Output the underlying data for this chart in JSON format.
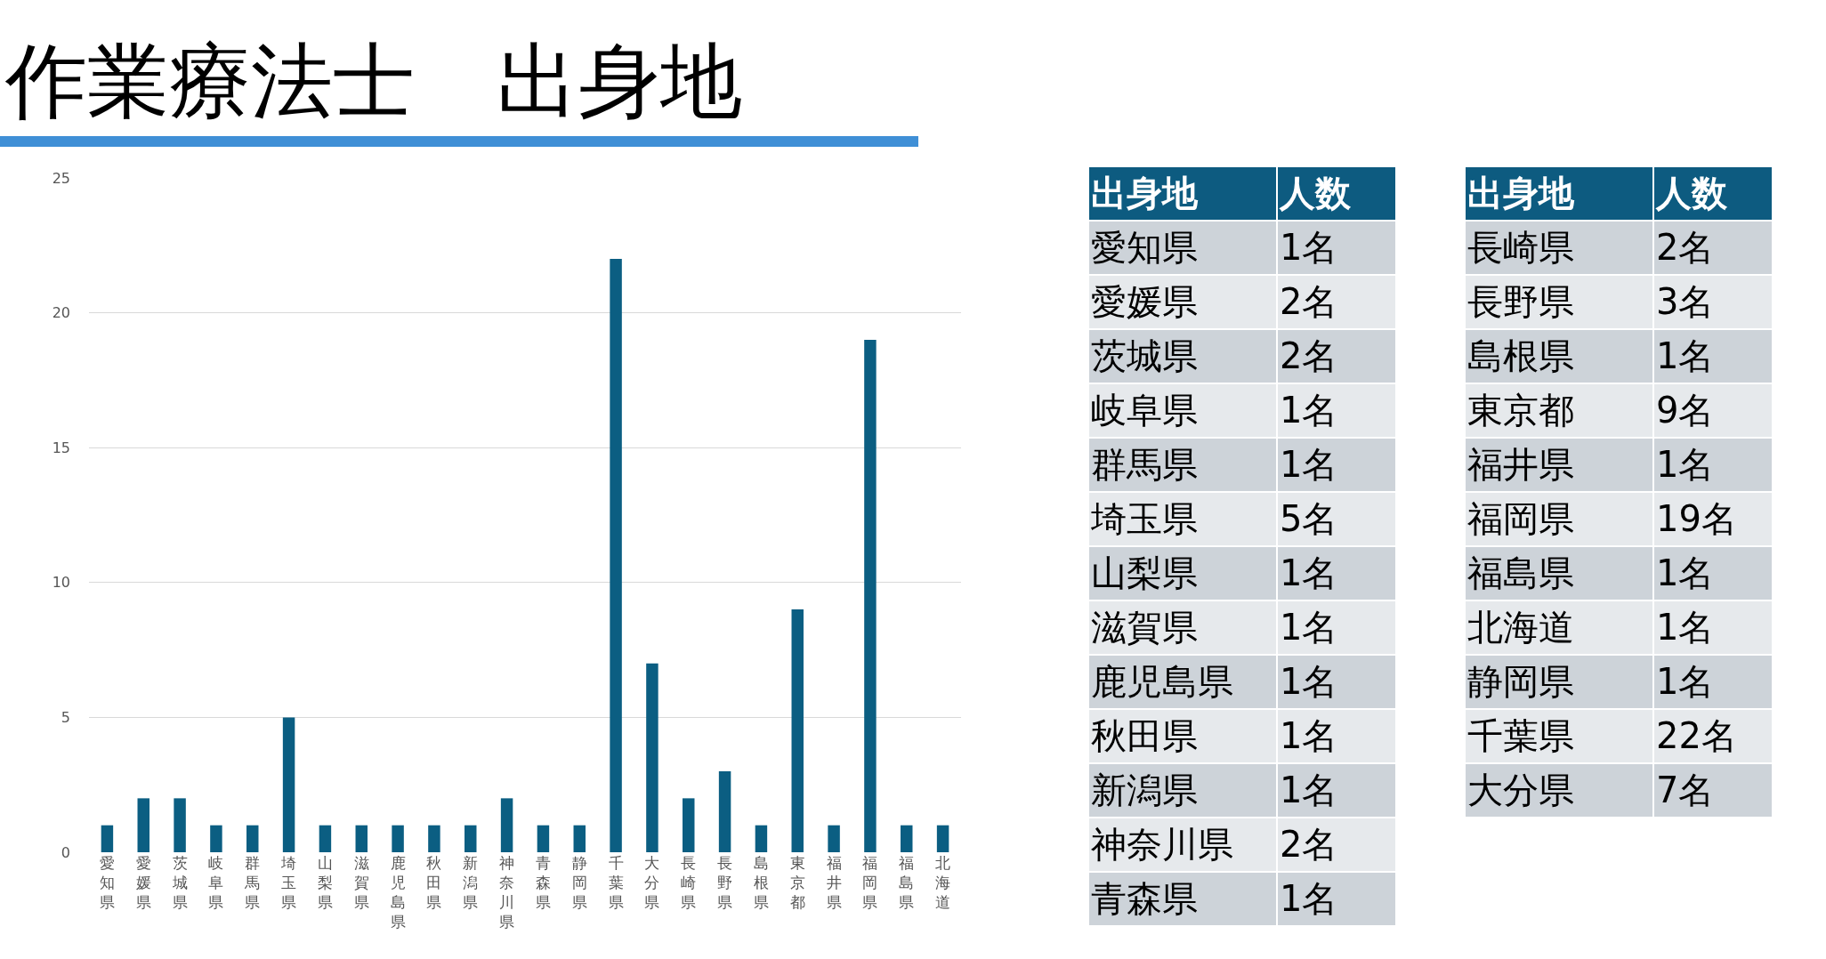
{
  "chart_data": [
    {
      "type": "bar",
      "title": "作業療法士　出身地",
      "categories": [
        "愛知県",
        "愛媛県",
        "茨城県",
        "岐阜県",
        "群馬県",
        "埼玉県",
        "山梨県",
        "滋賀県",
        "鹿児島県",
        "秋田県",
        "新潟県",
        "神奈川県",
        "青森県",
        "静岡県",
        "千葉県",
        "大分県",
        "長崎県",
        "長野県",
        "島根県",
        "東京都",
        "福井県",
        "福岡県",
        "福島県",
        "北海道"
      ],
      "values": [
        1,
        2,
        2,
        1,
        1,
        5,
        1,
        1,
        1,
        1,
        1,
        2,
        1,
        1,
        22,
        7,
        2,
        3,
        1,
        9,
        1,
        19,
        1,
        1
      ],
      "color": "#0b5e82",
      "ylim": [
        0,
        25
      ],
      "yticks": [
        0,
        5,
        10,
        15,
        20,
        25
      ],
      "grid": "y"
    },
    {
      "type": "other",
      "annotations": [
        "出身地",
        "人数"
      ],
      "categories": [
        "愛知県",
        "愛媛県",
        "茨城県",
        "岐阜県",
        "群馬県",
        "埼玉県",
        "山梨県",
        "滋賀県",
        "鹿児島県",
        "秋田県",
        "新潟県",
        "神奈川県",
        "青森県",
        "長崎県",
        "長野県",
        "島根県",
        "東京都",
        "福井県",
        "福岡県",
        "福島県",
        "北海道",
        "静岡県",
        "千葉県",
        "大分県"
      ],
      "value_labels": [
        "1名",
        "2名",
        "2名",
        "1名",
        "1名",
        "5名",
        "1名",
        "1名",
        "1名",
        "1名",
        "1名",
        "2名",
        "1名",
        "2名",
        "3名",
        "1名",
        "9名",
        "1名",
        "19名",
        "1名",
        "1名",
        "1名",
        "22名",
        "7名"
      ]
    }
  ]
}
